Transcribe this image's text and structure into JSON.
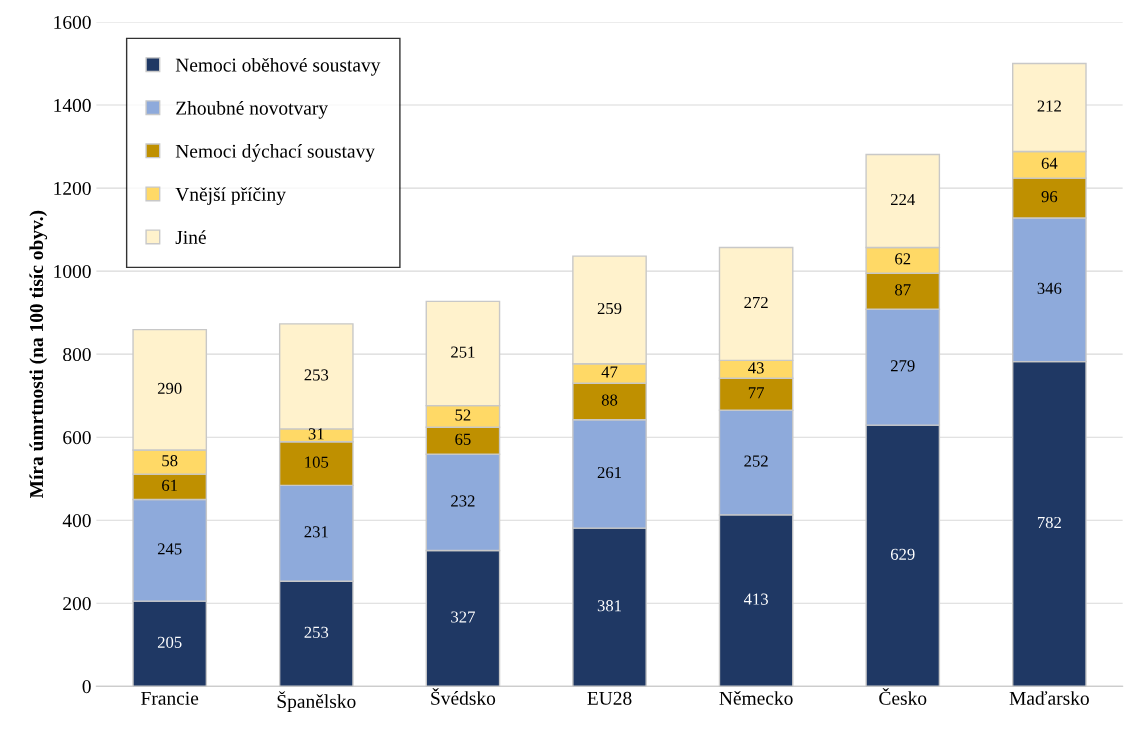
{
  "chart_data": {
    "type": "bar",
    "stacked": true,
    "ylabel": "Míra úmrtnosti (na 100 tisíc obyv.)",
    "categories": [
      "Francie",
      "Španělsko",
      "Švédsko",
      "EU28",
      "Německo",
      "Česko",
      "Maďarsko"
    ],
    "series": [
      {
        "name": "Nemoci oběhové soustavy",
        "color": "#1f3864",
        "values": [
          205,
          253,
          327,
          381,
          413,
          629,
          782
        ]
      },
      {
        "name": "Zhoubné novotvary",
        "color": "#8eaadb",
        "values": [
          245,
          231,
          232,
          261,
          252,
          279,
          346
        ]
      },
      {
        "name": "Nemoci dýchací soustavy",
        "color": "#bf9000",
        "values": [
          61,
          105,
          65,
          88,
          77,
          87,
          96
        ]
      },
      {
        "name": "Vnější příčiny",
        "color": "#ffd966",
        "values": [
          58,
          31,
          52,
          47,
          43,
          62,
          64
        ]
      },
      {
        "name": "Jiné",
        "color": "#fff2cc",
        "values": [
          290,
          253,
          251,
          259,
          272,
          224,
          212
        ]
      }
    ],
    "ylim": [
      0,
      1600
    ],
    "yticks": [
      0,
      200,
      400,
      600,
      800,
      1000,
      1200,
      1400,
      1600
    ],
    "grid": "y",
    "legend": "top left",
    "data_labels": true
  }
}
